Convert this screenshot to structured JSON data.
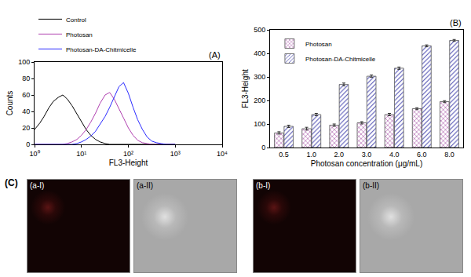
{
  "chart_data": [
    {
      "type": "line",
      "title": "(A)",
      "x_label": "FL3-Height",
      "y_label": "Counts",
      "log": "x",
      "x": [
        1,
        1.3,
        1.6,
        2,
        2.5,
        3.2,
        4,
        5,
        6.3,
        8,
        10,
        12.6,
        15.8,
        20,
        25,
        32,
        40,
        50,
        63,
        79,
        100,
        126,
        158,
        200,
        251,
        316,
        398,
        501,
        631,
        794,
        1000
      ],
      "series": [
        {
          "name": "Control",
          "color": "#000000",
          "values": [
            18,
            26,
            34,
            44,
            52,
            57,
            60,
            55,
            47,
            37,
            27,
            18,
            11,
            6,
            3,
            1,
            0,
            0,
            0,
            0,
            0,
            0,
            0,
            0,
            0,
            0,
            0,
            0,
            0,
            0,
            0
          ]
        },
        {
          "name": "Photosan",
          "color": "#b040b0",
          "values": [
            0,
            0,
            0,
            0,
            0,
            0,
            0,
            1,
            3,
            6,
            11,
            18,
            27,
            38,
            50,
            60,
            63,
            55,
            44,
            32,
            20,
            11,
            5,
            2,
            1,
            0,
            0,
            0,
            0,
            0,
            0
          ]
        },
        {
          "name": "Photosan-DA-Chitmicelle",
          "color": "#2a2aff",
          "values": [
            0,
            0,
            0,
            0,
            0,
            0,
            0,
            0,
            0,
            1,
            3,
            6,
            10,
            16,
            24,
            34,
            45,
            58,
            70,
            75,
            62,
            45,
            30,
            18,
            9,
            4,
            2,
            1,
            0,
            0,
            0
          ]
        }
      ],
      "xlim": [
        1,
        10000
      ],
      "xticks": [
        {
          "value": 1,
          "label": "10⁰"
        },
        {
          "value": 10,
          "label": "10¹"
        },
        {
          "value": 100,
          "label": "10²"
        },
        {
          "value": 1000,
          "label": "10³"
        },
        {
          "value": 10000,
          "label": "10⁴"
        }
      ],
      "ylim": [
        0,
        100
      ],
      "yticks": [
        0,
        20,
        40,
        60,
        80,
        100
      ],
      "grid": false,
      "legend": "top"
    },
    {
      "type": "bar",
      "title": "(B)",
      "x_label": "Photosan concentration (μg/mL)",
      "y_label": "FL3-Height",
      "categories": [
        "0.5",
        "1.0",
        "2.0",
        "3.0",
        "4.0",
        "6.0",
        "8.0"
      ],
      "series": [
        {
          "name": "Photosan",
          "color": "#dca0dc",
          "values": [
            62,
            80,
            95,
            105,
            140,
            165,
            195
          ],
          "errors": [
            5,
            6,
            5,
            5,
            5,
            4,
            4
          ]
        },
        {
          "name": "Photosan-DA-Chitmicelle",
          "color": "#b8b8f0",
          "values": [
            90,
            140,
            268,
            303,
            337,
            432,
            455
          ],
          "errors": [
            5,
            5,
            6,
            5,
            5,
            4,
            4
          ]
        }
      ],
      "ylim": [
        0,
        500
      ],
      "yticks": [
        0,
        100,
        200,
        300,
        400,
        500
      ],
      "grid": false,
      "legend": "top-left"
    }
  ],
  "panel_c": {
    "title": "(C)",
    "images": [
      "(a-I)",
      "(a-II)",
      "(b-I)",
      "(b-II)"
    ]
  }
}
